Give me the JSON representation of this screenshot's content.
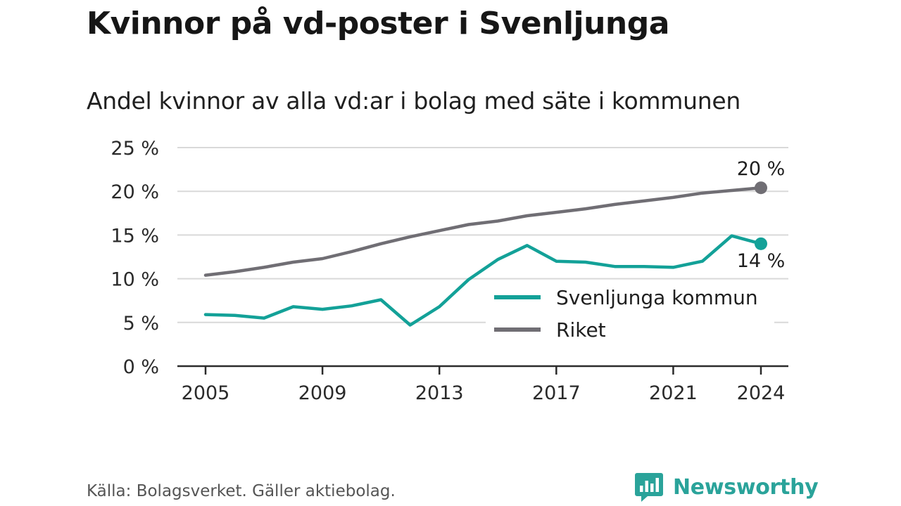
{
  "title": "Kvinnor på vd-poster i Svenljunga",
  "subtitle": "Andel kvinnor av alla vd:ar i bolag med säte i kommunen",
  "source": "Källa: Bolagsverket. Gäller aktiebolag.",
  "brand": "Newsworthy",
  "chart_data": {
    "type": "line",
    "title": "Kvinnor på vd-poster i Svenljunga",
    "subtitle": "Andel kvinnor av alla vd:ar i bolag med säte i kommunen",
    "x": [
      2005,
      2006,
      2007,
      2008,
      2009,
      2010,
      2011,
      2012,
      2013,
      2014,
      2015,
      2016,
      2017,
      2018,
      2019,
      2020,
      2021,
      2022,
      2023,
      2024
    ],
    "x_ticks": [
      2005,
      2009,
      2013,
      2017,
      2021,
      2024
    ],
    "y_ticks": [
      0,
      5,
      10,
      15,
      20,
      25
    ],
    "y_tick_suffix": " %",
    "ylim": [
      0,
      25
    ],
    "grid": true,
    "legend_position": "bottom-right",
    "series": [
      {
        "name": "Svenljunga kommun",
        "color": "#13a198",
        "values": [
          5.9,
          5.8,
          5.5,
          6.8,
          6.5,
          6.9,
          7.6,
          4.7,
          6.8,
          9.9,
          12.2,
          13.8,
          12.0,
          11.9,
          11.4,
          11.4,
          11.3,
          12.0,
          14.9,
          14.0
        ],
        "end_label": "14 %"
      },
      {
        "name": "Riket",
        "color": "#706e74",
        "values": [
          10.4,
          10.8,
          11.3,
          11.9,
          12.3,
          13.1,
          14.0,
          14.8,
          15.5,
          16.2,
          16.6,
          17.2,
          17.6,
          18.0,
          18.5,
          18.9,
          19.3,
          19.8,
          20.1,
          20.4
        ],
        "end_label": "20 %"
      }
    ]
  }
}
